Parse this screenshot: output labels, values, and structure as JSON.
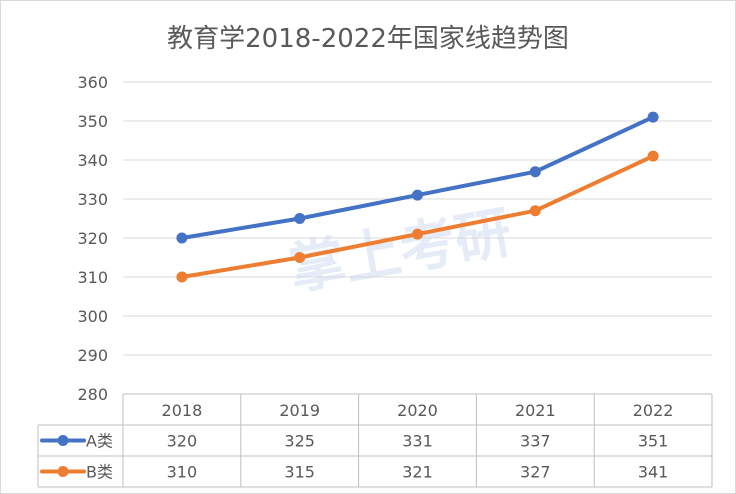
{
  "chart_data": {
    "type": "line",
    "title": "教育学2018-2022年国家线趋势图",
    "categories": [
      "2018",
      "2019",
      "2020",
      "2021",
      "2022"
    ],
    "series": [
      {
        "name": "A类",
        "values": [
          320,
          325,
          331,
          337,
          351
        ],
        "color": "#4472c4"
      },
      {
        "name": "B类",
        "values": [
          310,
          315,
          321,
          327,
          341
        ],
        "color": "#ed7d31"
      }
    ],
    "ylim": [
      280,
      360
    ],
    "yticks": [
      280,
      290,
      300,
      310,
      320,
      330,
      340,
      350,
      360
    ],
    "grid": true,
    "legend": "data-table",
    "watermark": "掌上考研"
  }
}
